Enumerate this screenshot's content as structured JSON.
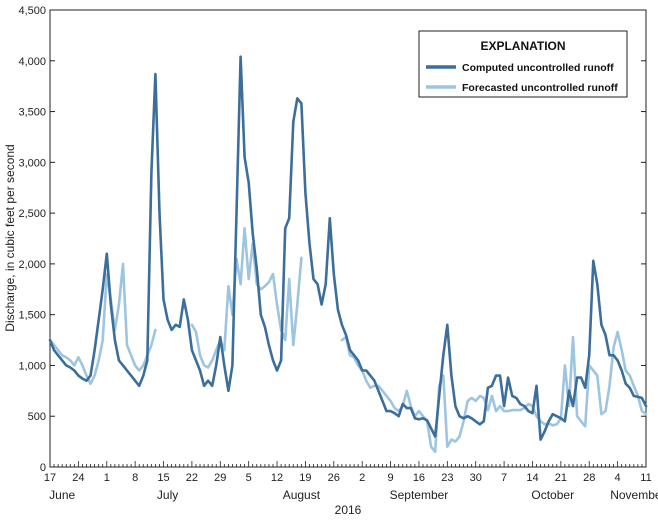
{
  "chart_data": {
    "type": "line",
    "title": "",
    "xlabel": "2016",
    "ylabel": "Discharge, in cubic feet per second",
    "ylim": [
      0,
      4500
    ],
    "yticks": [
      0,
      500,
      1000,
      1500,
      2000,
      2500,
      3000,
      3500,
      4000,
      4500
    ],
    "ytick_labels": [
      "0",
      "500",
      "1,000",
      "1,500",
      "2,000",
      "2,500",
      "3,000",
      "3,500",
      "4,000",
      "4,500"
    ],
    "x_unit": "days after June 17, 2016",
    "xlim": [
      0,
      147
    ],
    "xticks": [
      {
        "day": 0,
        "label": "17"
      },
      {
        "day": 7,
        "label": "24"
      },
      {
        "day": 14,
        "label": "1"
      },
      {
        "day": 21,
        "label": "8"
      },
      {
        "day": 28,
        "label": "15"
      },
      {
        "day": 35,
        "label": "22"
      },
      {
        "day": 42,
        "label": "29"
      },
      {
        "day": 49,
        "label": "5"
      },
      {
        "day": 56,
        "label": "12"
      },
      {
        "day": 63,
        "label": "19"
      },
      {
        "day": 70,
        "label": "26"
      },
      {
        "day": 77,
        "label": "2"
      },
      {
        "day": 84,
        "label": "9"
      },
      {
        "day": 91,
        "label": "16"
      },
      {
        "day": 98,
        "label": "23"
      },
      {
        "day": 105,
        "label": "30"
      },
      {
        "day": 112,
        "label": "7"
      },
      {
        "day": 119,
        "label": "14"
      },
      {
        "day": 126,
        "label": "21"
      },
      {
        "day": 133,
        "label": "28"
      },
      {
        "day": 140,
        "label": "4"
      },
      {
        "day": 147,
        "label": "11"
      }
    ],
    "month_labels": [
      {
        "label": "June",
        "day": 3
      },
      {
        "label": "July",
        "day": 29
      },
      {
        "label": "August",
        "day": 62
      },
      {
        "label": "September",
        "day": 91
      },
      {
        "label": "October",
        "day": 124
      },
      {
        "label": "November",
        "day": 145
      }
    ],
    "legend": {
      "title": "EXPLANATION",
      "position": "top-right",
      "entries": [
        "Computed uncontrolled runoff",
        "Forecasted uncontrolled runoff"
      ]
    },
    "series": [
      {
        "name": "Computed uncontrolled runoff",
        "color": "#3c6e9c",
        "points": [
          [
            0,
            1250
          ],
          [
            1,
            1150
          ],
          [
            2,
            1100
          ],
          [
            3,
            1050
          ],
          [
            4,
            1000
          ],
          [
            5,
            980
          ],
          [
            6,
            950
          ],
          [
            7,
            900
          ],
          [
            8,
            870
          ],
          [
            9,
            850
          ],
          [
            10,
            900
          ],
          [
            11,
            1150
          ],
          [
            12,
            1450
          ],
          [
            13,
            1750
          ],
          [
            14,
            2100
          ],
          [
            15,
            1600
          ],
          [
            16,
            1250
          ],
          [
            17,
            1050
          ],
          [
            18,
            1000
          ],
          [
            19,
            950
          ],
          [
            20,
            900
          ],
          [
            21,
            850
          ],
          [
            22,
            800
          ],
          [
            23,
            900
          ],
          [
            24,
            1050
          ],
          [
            25,
            2900
          ],
          [
            26,
            3870
          ],
          [
            27,
            2500
          ],
          [
            28,
            1650
          ],
          [
            29,
            1450
          ],
          [
            30,
            1350
          ],
          [
            31,
            1400
          ],
          [
            32,
            1380
          ],
          [
            33,
            1650
          ],
          [
            34,
            1450
          ],
          [
            35,
            1150
          ],
          [
            36,
            1050
          ],
          [
            37,
            950
          ],
          [
            38,
            800
          ],
          [
            39,
            850
          ],
          [
            40,
            800
          ],
          [
            41,
            1000
          ],
          [
            42,
            1280
          ],
          [
            43,
            1000
          ],
          [
            44,
            750
          ],
          [
            45,
            1000
          ],
          [
            46,
            2500
          ],
          [
            47,
            4040
          ],
          [
            48,
            3050
          ],
          [
            49,
            2800
          ],
          [
            50,
            2300
          ],
          [
            51,
            1950
          ],
          [
            52,
            1500
          ],
          [
            53,
            1380
          ],
          [
            54,
            1200
          ],
          [
            55,
            1050
          ],
          [
            56,
            950
          ],
          [
            57,
            1050
          ],
          [
            58,
            2350
          ],
          [
            59,
            2450
          ],
          [
            60,
            3400
          ],
          [
            61,
            3630
          ],
          [
            62,
            3580
          ],
          [
            63,
            2700
          ],
          [
            64,
            2200
          ],
          [
            65,
            1850
          ],
          [
            66,
            1800
          ],
          [
            67,
            1600
          ],
          [
            68,
            1800
          ],
          [
            69,
            2450
          ],
          [
            70,
            1900
          ],
          [
            71,
            1550
          ],
          [
            72,
            1400
          ],
          [
            73,
            1300
          ],
          [
            74,
            1150
          ],
          [
            75,
            1100
          ],
          [
            76,
            1050
          ],
          [
            77,
            950
          ],
          [
            78,
            950
          ],
          [
            79,
            900
          ],
          [
            80,
            850
          ],
          [
            81,
            750
          ],
          [
            82,
            650
          ],
          [
            83,
            550
          ],
          [
            84,
            550
          ],
          [
            85,
            530
          ],
          [
            86,
            500
          ],
          [
            87,
            620
          ],
          [
            88,
            580
          ],
          [
            89,
            580
          ],
          [
            90,
            480
          ],
          [
            91,
            470
          ],
          [
            92,
            480
          ],
          [
            93,
            460
          ],
          [
            94,
            380
          ],
          [
            95,
            300
          ],
          [
            96,
            700
          ],
          [
            97,
            1100
          ],
          [
            98,
            1400
          ],
          [
            99,
            900
          ],
          [
            100,
            600
          ],
          [
            101,
            500
          ],
          [
            102,
            480
          ],
          [
            103,
            500
          ],
          [
            104,
            480
          ],
          [
            105,
            450
          ],
          [
            106,
            420
          ],
          [
            107,
            450
          ],
          [
            108,
            780
          ],
          [
            109,
            800
          ],
          [
            110,
            900
          ],
          [
            111,
            900
          ],
          [
            112,
            600
          ],
          [
            113,
            880
          ],
          [
            114,
            700
          ],
          [
            115,
            680
          ],
          [
            116,
            620
          ],
          [
            117,
            600
          ],
          [
            118,
            550
          ],
          [
            119,
            530
          ],
          [
            120,
            800
          ],
          [
            121,
            270
          ],
          [
            122,
            350
          ],
          [
            123,
            450
          ],
          [
            124,
            520
          ],
          [
            125,
            500
          ],
          [
            126,
            480
          ],
          [
            127,
            450
          ],
          [
            128,
            750
          ],
          [
            129,
            600
          ],
          [
            130,
            880
          ],
          [
            131,
            880
          ],
          [
            132,
            780
          ],
          [
            133,
            1100
          ],
          [
            134,
            2030
          ],
          [
            135,
            1800
          ],
          [
            136,
            1400
          ],
          [
            137,
            1300
          ],
          [
            138,
            1100
          ],
          [
            139,
            1100
          ],
          [
            140,
            1050
          ],
          [
            141,
            950
          ],
          [
            142,
            820
          ],
          [
            143,
            780
          ],
          [
            144,
            700
          ],
          [
            145,
            690
          ],
          [
            146,
            680
          ],
          [
            147,
            600
          ]
        ]
      },
      {
        "name": "Forecasted uncontrolled runoff",
        "color": "#9ec5e0",
        "segments": [
          [
            [
              0,
              1250
            ],
            [
              1,
              1200
            ],
            [
              2,
              1150
            ],
            [
              3,
              1100
            ],
            [
              4,
              1080
            ],
            [
              5,
              1050
            ],
            [
              6,
              1000
            ],
            [
              7,
              1080
            ],
            [
              8,
              1000
            ],
            [
              9,
              900
            ],
            [
              10,
              820
            ],
            [
              11,
              900
            ],
            [
              12,
              1050
            ],
            [
              13,
              1250
            ],
            [
              14,
              1900
            ],
            [
              15,
              1650
            ],
            [
              16,
              1350
            ],
            [
              17,
              1600
            ],
            [
              18,
              2000
            ],
            [
              19,
              1200
            ],
            [
              20,
              1100
            ],
            [
              21,
              1000
            ],
            [
              22,
              950
            ],
            [
              23,
              1000
            ],
            [
              24,
              1100
            ],
            [
              25,
              1200
            ],
            [
              26,
              1350
            ]
          ],
          [
            [
              35,
              1400
            ],
            [
              36,
              1330
            ],
            [
              37,
              1100
            ],
            [
              38,
              1000
            ],
            [
              39,
              980
            ],
            [
              40,
              1050
            ],
            [
              41,
              1150
            ],
            [
              42,
              1250
            ],
            [
              43,
              1150
            ],
            [
              44,
              1780
            ],
            [
              45,
              1500
            ],
            [
              46,
              2050
            ],
            [
              47,
              1800
            ],
            [
              48,
              2350
            ],
            [
              49,
              1850
            ],
            [
              50,
              2200
            ],
            [
              51,
              1800
            ],
            [
              52,
              1750
            ],
            [
              53,
              1780
            ],
            [
              54,
              1820
            ],
            [
              55,
              1900
            ],
            [
              56,
              1600
            ],
            [
              57,
              1350
            ],
            [
              58,
              1250
            ],
            [
              59,
              1850
            ],
            [
              60,
              1200
            ],
            [
              61,
              1600
            ],
            [
              62,
              2060
            ]
          ],
          [
            [
              72,
              1250
            ],
            [
              73,
              1280
            ],
            [
              74,
              1100
            ],
            [
              75,
              1080
            ],
            [
              76,
              1000
            ],
            [
              77,
              950
            ],
            [
              78,
              850
            ],
            [
              79,
              780
            ],
            [
              80,
              800
            ],
            [
              81,
              800
            ],
            [
              82,
              750
            ],
            [
              83,
              700
            ],
            [
              84,
              650
            ],
            [
              85,
              580
            ],
            [
              86,
              550
            ],
            [
              87,
              600
            ],
            [
              88,
              750
            ],
            [
              89,
              600
            ],
            [
              90,
              500
            ],
            [
              91,
              550
            ],
            [
              92,
              500
            ],
            [
              93,
              450
            ],
            [
              94,
              200
            ],
            [
              95,
              150
            ],
            [
              96,
              800
            ],
            [
              97,
              900
            ],
            [
              98,
              200
            ],
            [
              99,
              270
            ],
            [
              100,
              250
            ],
            [
              101,
              300
            ],
            [
              102,
              450
            ],
            [
              103,
              650
            ],
            [
              104,
              680
            ],
            [
              105,
              650
            ],
            [
              106,
              700
            ],
            [
              107,
              680
            ],
            [
              108,
              560
            ],
            [
              109,
              700
            ],
            [
              110,
              550
            ],
            [
              111,
              600
            ],
            [
              112,
              550
            ],
            [
              113,
              550
            ],
            [
              114,
              560
            ],
            [
              115,
              560
            ],
            [
              116,
              560
            ],
            [
              117,
              580
            ],
            [
              118,
              620
            ],
            [
              119,
              600
            ],
            [
              120,
              500
            ],
            [
              121,
              450
            ],
            [
              122,
              420
            ],
            [
              123,
              430
            ],
            [
              124,
              410
            ],
            [
              125,
              420
            ],
            [
              126,
              480
            ],
            [
              127,
              1000
            ],
            [
              128,
              600
            ],
            [
              129,
              1280
            ],
            [
              130,
              500
            ],
            [
              131,
              450
            ],
            [
              132,
              400
            ],
            [
              133,
              1000
            ],
            [
              134,
              950
            ],
            [
              135,
              900
            ],
            [
              136,
              520
            ],
            [
              137,
              550
            ],
            [
              138,
              800
            ],
            [
              139,
              1180
            ],
            [
              140,
              1330
            ],
            [
              141,
              1150
            ],
            [
              142,
              950
            ],
            [
              143,
              900
            ],
            [
              144,
              800
            ],
            [
              145,
              700
            ],
            [
              146,
              550
            ],
            [
              147,
              520
            ]
          ]
        ]
      }
    ]
  }
}
